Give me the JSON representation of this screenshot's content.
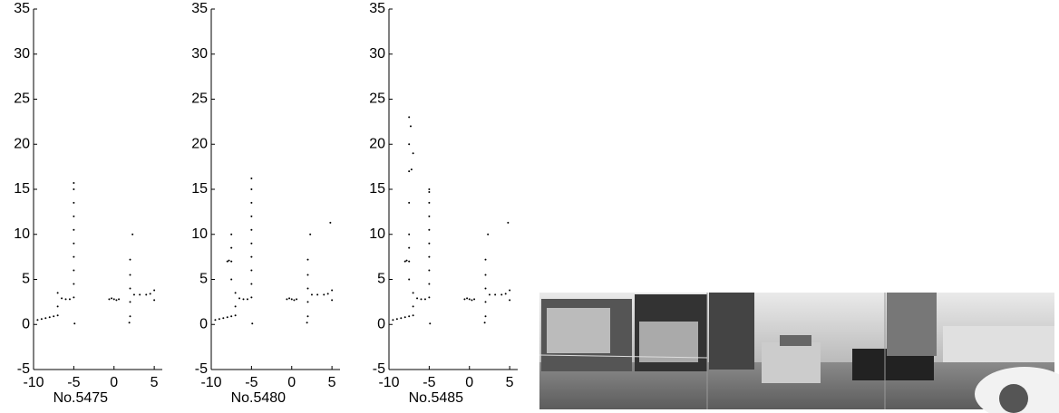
{
  "chart_data": [
    {
      "type": "scatter",
      "xlabel": "No.5475",
      "color": "#000000",
      "xlim": [
        -10,
        6
      ],
      "ylim": [
        -5,
        35
      ],
      "xticks": [
        -10,
        -5,
        0,
        5
      ],
      "yticks": [
        -5,
        0,
        5,
        10,
        15,
        20,
        25,
        30,
        35
      ],
      "x": [
        -9.5,
        -9,
        -8.5,
        -8,
        -7.5,
        -7,
        -7,
        -7,
        -6.5,
        -6,
        -5.5,
        -5,
        -5,
        -5,
        -5,
        -5,
        -5,
        -5,
        -5,
        -5,
        -5,
        -4.9,
        -0.6,
        -0.3,
        0,
        0.3,
        0.6,
        1.9,
        2,
        2,
        2,
        2,
        2,
        2.3,
        2.5,
        3.2,
        4,
        4.5,
        5,
        5
      ],
      "values": [
        0.5,
        0.6,
        0.7,
        0.8,
        0.9,
        1,
        2,
        3.5,
        2.9,
        2.8,
        2.8,
        3,
        4.5,
        6,
        7.5,
        9,
        10.5,
        12,
        13.5,
        15,
        15.7,
        0.1,
        2.8,
        2.9,
        2.8,
        2.7,
        2.8,
        0.2,
        0.9,
        2.5,
        4,
        5.5,
        7.2,
        10,
        3.3,
        3.3,
        3.3,
        3.4,
        2.7,
        3.8
      ]
    },
    {
      "type": "scatter",
      "xlabel": "No.5480",
      "color": "#000000",
      "xlim": [
        -10,
        6
      ],
      "ylim": [
        -5,
        35
      ],
      "xticks": [
        -10,
        -5,
        0,
        5
      ],
      "yticks": [
        -5,
        0,
        5,
        10,
        15,
        20,
        25,
        30,
        35
      ],
      "x": [
        -9.5,
        -9,
        -8.5,
        -8,
        -7.5,
        -7,
        -7,
        -7,
        -6.5,
        -6,
        -5.5,
        -5,
        -5,
        -5,
        -5,
        -5,
        -5,
        -5,
        -5,
        -5,
        -5,
        -4.9,
        -0.6,
        -0.3,
        0,
        0.3,
        0.6,
        1.9,
        2,
        2,
        2,
        2,
        2,
        2.3,
        2.5,
        3.2,
        4,
        4.5,
        5,
        5,
        -7.5,
        -7.5,
        -7.5,
        -7.5,
        -8,
        -7.8,
        4.8
      ],
      "values": [
        0.5,
        0.6,
        0.7,
        0.8,
        0.9,
        1,
        2,
        3.5,
        2.9,
        2.8,
        2.8,
        3,
        4.5,
        6,
        7.5,
        9,
        10.5,
        12,
        13.5,
        15,
        16.2,
        0.1,
        2.8,
        2.9,
        2.8,
        2.7,
        2.8,
        0.2,
        0.9,
        2.5,
        4,
        5.5,
        7.2,
        10,
        3.3,
        3.3,
        3.3,
        3.4,
        2.7,
        3.8,
        5,
        7,
        8.5,
        10,
        7,
        7.1,
        11.3
      ]
    },
    {
      "type": "scatter",
      "xlabel": "No.5485",
      "color": "#000000",
      "xlim": [
        -10,
        6
      ],
      "ylim": [
        -5,
        35
      ],
      "xticks": [
        -10,
        -5,
        0,
        5
      ],
      "yticks": [
        -5,
        0,
        5,
        10,
        15,
        20,
        25,
        30,
        35
      ],
      "x": [
        -9.5,
        -9,
        -8.5,
        -8,
        -7.5,
        -7,
        -7,
        -7,
        -6.5,
        -6,
        -5.5,
        -5,
        -5,
        -5,
        -5,
        -5,
        -5,
        -5,
        -5,
        -5,
        -5,
        -4.9,
        -0.6,
        -0.3,
        0,
        0.3,
        0.6,
        1.9,
        2,
        2,
        2,
        2,
        2,
        2.3,
        2.5,
        3.2,
        4,
        4.5,
        5,
        5,
        -7.5,
        -7.5,
        -7.5,
        -7.5,
        -8,
        -7.8,
        4.8,
        -7.5,
        -7.5,
        -7.5,
        -7.5,
        -7.2,
        -7,
        -7.3
      ],
      "values": [
        0.5,
        0.6,
        0.7,
        0.8,
        0.9,
        1,
        2,
        3.5,
        2.9,
        2.8,
        2.8,
        3,
        4.5,
        6,
        7.5,
        9,
        10.5,
        12,
        13.5,
        15,
        14.7,
        0.1,
        2.8,
        2.9,
        2.8,
        2.7,
        2.8,
        0.2,
        0.9,
        2.5,
        4,
        5.5,
        7.2,
        10,
        3.3,
        3.3,
        3.3,
        3.4,
        2.7,
        3.8,
        5,
        7,
        8.5,
        10,
        7,
        7.1,
        11.3,
        13.5,
        17,
        20,
        23,
        17.2,
        19,
        22
      ]
    }
  ]
}
